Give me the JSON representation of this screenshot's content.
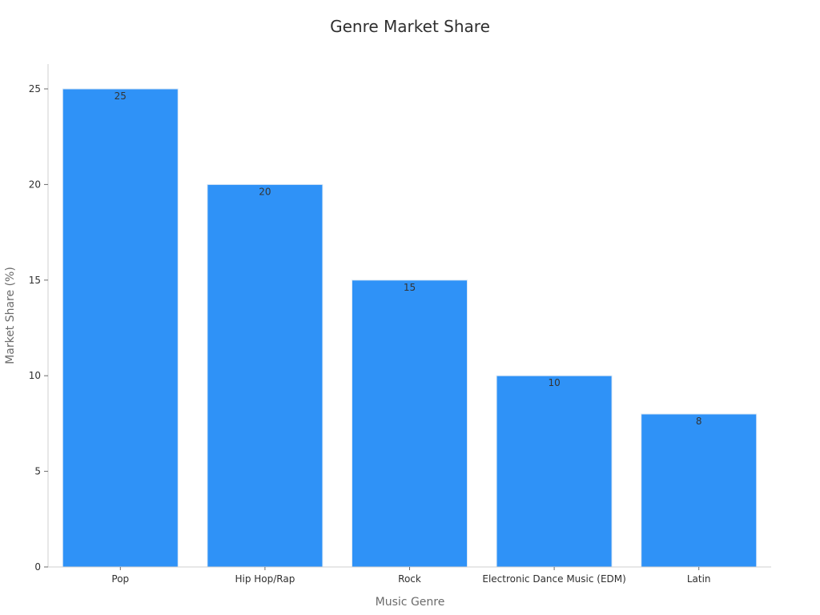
{
  "chart_data": {
    "type": "bar",
    "title": "Genre Market Share",
    "xlabel": "Music Genre",
    "ylabel": "Market Share (%)",
    "categories": [
      "Pop",
      "Hip Hop/Rap",
      "Rock",
      "Electronic Dance Music (EDM)",
      "Latin"
    ],
    "values": [
      25,
      20,
      15,
      10,
      8
    ],
    "data_labels": [
      "25",
      "20",
      "15",
      "10",
      "8"
    ],
    "y_ticks": [
      0,
      5,
      10,
      15,
      20,
      25
    ],
    "ylim": [
      0,
      26.3
    ],
    "grid": false,
    "legend": "none",
    "bar_color": "#2f92f7"
  }
}
